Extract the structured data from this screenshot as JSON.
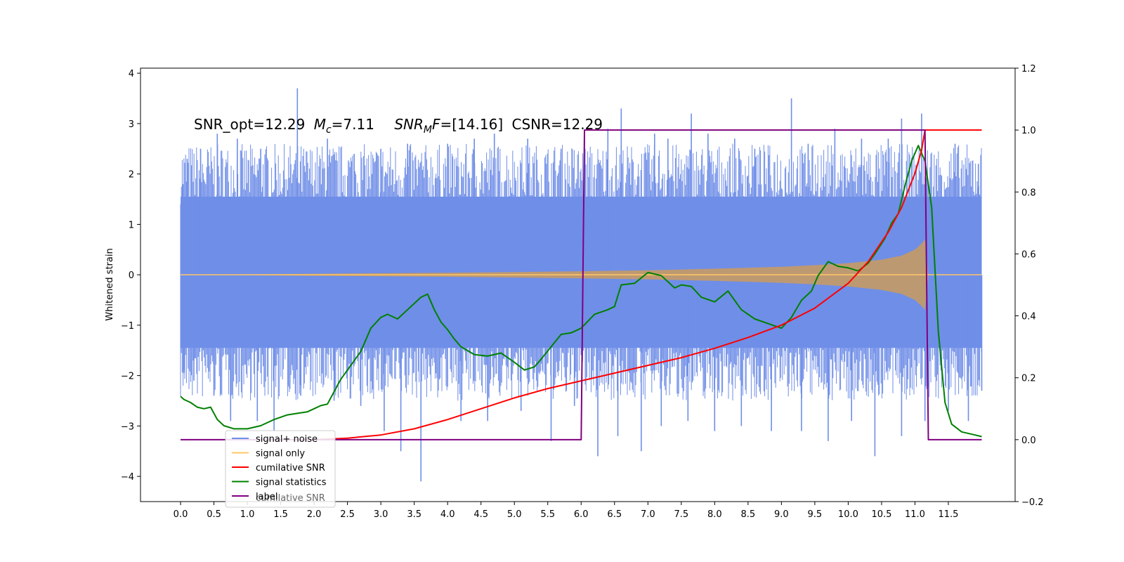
{
  "chart_data": {
    "type": "line",
    "title": "",
    "xlabel": "",
    "ylabel": "Whitened strain",
    "xlim": [
      -0.6,
      12.5
    ],
    "ylim": [
      -4.5,
      4.1
    ],
    "y2lim": [
      -0.2,
      1.2
    ],
    "x_ticks": [
      0.0,
      0.5,
      1.0,
      1.5,
      2.0,
      2.5,
      3.0,
      3.5,
      4.0,
      4.5,
      5.0,
      5.5,
      6.0,
      6.5,
      7.0,
      7.5,
      8.0,
      8.5,
      9.0,
      9.5,
      10.0,
      10.5,
      11.0,
      11.5
    ],
    "x_tick_labels": [
      "0.0",
      "0.5",
      "1.0",
      "1.5",
      "2.0",
      "2.5",
      "3.0",
      "3.5",
      "4.0",
      "4.5",
      "5.0",
      "5.5",
      "6.0",
      "6.5",
      "7.0",
      "7.5",
      "8.0",
      "8.5",
      "9.0",
      "9.5",
      "10.0",
      "10.5",
      "11.0",
      "11.5"
    ],
    "y_ticks": [
      -4,
      -3,
      -2,
      -1,
      0,
      1,
      2,
      3,
      4
    ],
    "y_tick_labels": [
      "−4",
      "−3",
      "−2",
      "−1",
      "0",
      "1",
      "2",
      "3",
      "4"
    ],
    "y2_ticks": [
      -0.2,
      0.0,
      0.2,
      0.4,
      0.6,
      0.8,
      1.0,
      1.2
    ],
    "y2_tick_labels": [
      "−0.2",
      "0.0",
      "0.2",
      "0.4",
      "0.6",
      "0.8",
      "1.0",
      "1.2"
    ],
    "annotation": {
      "snr_opt": "SNR_opt=12.29",
      "mc_symbol": "M",
      "mc_sub": "c",
      "mc_value": "=7.11",
      "snr_mf_symbol": "SNR",
      "snr_mf_sub": "M",
      "snr_mf_f": "F",
      "snr_mf_value": "=[14.16]",
      "csnr": "CSNR=12.29"
    },
    "legend": {
      "position": "lower-left",
      "items": [
        {
          "label": "signal+ noise",
          "color": "#6f8ee8"
        },
        {
          "label": "signal only",
          "color": "#ffc766"
        },
        {
          "label": "cumilative SNR",
          "color": "#ff0000"
        },
        {
          "label": "signal statistics",
          "color": "#008000"
        },
        {
          "label": "label",
          "color": "#800080"
        }
      ],
      "ghost_text": "cumilative SNR"
    },
    "series": [
      {
        "name": "signal+ noise",
        "axis": "left",
        "render": "noise-band",
        "x_start": 0.0,
        "x_end": 12.0,
        "band_upper": 1.55,
        "band_lower": -1.45,
        "spikes": [
          [
            0.03,
            1.8
          ],
          [
            0.1,
            2.3
          ],
          [
            0.3,
            2.5
          ],
          [
            0.55,
            2.8
          ],
          [
            0.85,
            2.7
          ],
          [
            1.2,
            2.5
          ],
          [
            1.75,
            3.7
          ],
          [
            2.2,
            2.7
          ],
          [
            2.6,
            2.4
          ],
          [
            3.0,
            2.5
          ],
          [
            3.4,
            2.6
          ],
          [
            4.0,
            2.6
          ],
          [
            4.4,
            2.7
          ],
          [
            4.7,
            2.8
          ],
          [
            5.2,
            2.7
          ],
          [
            5.7,
            2.5
          ],
          [
            6.05,
            2.7
          ],
          [
            6.4,
            2.9
          ],
          [
            6.6,
            3.3
          ],
          [
            7.1,
            2.8
          ],
          [
            7.3,
            2.7
          ],
          [
            7.65,
            3.2
          ],
          [
            7.9,
            2.8
          ],
          [
            8.3,
            2.7
          ],
          [
            8.6,
            2.5
          ],
          [
            9.15,
            3.5
          ],
          [
            9.4,
            2.6
          ],
          [
            9.8,
            2.9
          ],
          [
            10.2,
            2.7
          ],
          [
            10.6,
            2.7
          ],
          [
            10.8,
            3.1
          ],
          [
            11.1,
            3.2
          ],
          [
            11.6,
            2.6
          ],
          [
            11.95,
            2.2
          ],
          [
            0.05,
            -1.9
          ],
          [
            0.2,
            -2.1
          ],
          [
            0.5,
            -2.4
          ],
          [
            0.75,
            -2.9
          ],
          [
            1.15,
            -2.9
          ],
          [
            1.4,
            -3.1
          ],
          [
            1.8,
            -2.4
          ],
          [
            2.3,
            -2.5
          ],
          [
            2.7,
            -2.6
          ],
          [
            3.05,
            -3.1
          ],
          [
            3.3,
            -3.5
          ],
          [
            3.6,
            -4.1
          ],
          [
            4.2,
            -2.9
          ],
          [
            4.6,
            -2.9
          ],
          [
            5.1,
            -2.7
          ],
          [
            5.55,
            -3.3
          ],
          [
            5.9,
            -2.6
          ],
          [
            6.25,
            -3.6
          ],
          [
            6.55,
            -3.2
          ],
          [
            6.9,
            -3.5
          ],
          [
            7.2,
            -3.0
          ],
          [
            7.6,
            -2.9
          ],
          [
            8.0,
            -3.1
          ],
          [
            8.4,
            -3.0
          ],
          [
            8.85,
            -3.1
          ],
          [
            9.3,
            -3.1
          ],
          [
            9.7,
            -3.3
          ],
          [
            10.05,
            -2.9
          ],
          [
            10.4,
            -3.6
          ],
          [
            10.8,
            -3.2
          ],
          [
            11.15,
            -2.9
          ],
          [
            11.5,
            -2.7
          ],
          [
            11.8,
            -2.9
          ],
          [
            12.0,
            -2.3
          ]
        ]
      },
      {
        "name": "signal only",
        "axis": "left",
        "render": "chirp-envelope",
        "color": "#ffc766",
        "x": [
          0.0,
          2.0,
          4.0,
          6.0,
          7.0,
          8.0,
          9.0,
          9.5,
          10.0,
          10.5,
          10.8,
          11.0,
          11.1,
          11.15,
          11.2,
          12.0
        ],
        "amplitude": [
          0.0,
          0.02,
          0.04,
          0.07,
          0.09,
          0.12,
          0.16,
          0.19,
          0.23,
          0.3,
          0.38,
          0.5,
          0.62,
          0.7,
          0.0,
          0.0
        ]
      },
      {
        "name": "cumilative SNR",
        "axis": "right",
        "color": "#ff0000",
        "x": [
          2.0,
          2.5,
          3.0,
          3.5,
          4.0,
          4.5,
          5.0,
          5.5,
          6.0,
          6.5,
          7.0,
          7.5,
          8.0,
          8.5,
          9.0,
          9.5,
          10.0,
          10.3,
          10.6,
          10.8,
          11.0,
          11.1,
          11.15,
          12.0
        ],
        "y": [
          0.0,
          0.005,
          0.015,
          0.035,
          0.065,
          0.1,
          0.135,
          0.165,
          0.19,
          0.215,
          0.24,
          0.265,
          0.295,
          0.33,
          0.37,
          0.425,
          0.505,
          0.575,
          0.67,
          0.75,
          0.86,
          0.935,
          1.0,
          1.0
        ]
      },
      {
        "name": "signal statistics",
        "axis": "right",
        "color": "#008000",
        "x": [
          0.0,
          0.05,
          0.15,
          0.25,
          0.35,
          0.45,
          0.55,
          0.65,
          0.8,
          1.0,
          1.2,
          1.4,
          1.6,
          1.75,
          1.9,
          2.0,
          2.1,
          2.2,
          2.3,
          2.4,
          2.55,
          2.7,
          2.85,
          3.0,
          3.1,
          3.25,
          3.4,
          3.6,
          3.7,
          3.8,
          3.9,
          4.0,
          4.1,
          4.2,
          4.4,
          4.6,
          4.8,
          5.0,
          5.15,
          5.3,
          5.4,
          5.55,
          5.7,
          5.85,
          6.0,
          6.2,
          6.4,
          6.5,
          6.6,
          6.8,
          7.0,
          7.1,
          7.2,
          7.4,
          7.5,
          7.65,
          7.8,
          8.0,
          8.2,
          8.4,
          8.6,
          8.8,
          9.0,
          9.15,
          9.3,
          9.45,
          9.55,
          9.7,
          9.85,
          10.0,
          10.15,
          10.3,
          10.4,
          10.55,
          10.65,
          10.75,
          10.85,
          10.95,
          11.05,
          11.15,
          11.25,
          11.35,
          11.45,
          11.55,
          11.7,
          11.9,
          12.0
        ],
        "y": [
          0.14,
          0.13,
          0.12,
          0.105,
          0.1,
          0.105,
          0.065,
          0.045,
          0.035,
          0.035,
          0.045,
          0.065,
          0.08,
          0.085,
          0.09,
          0.1,
          0.11,
          0.115,
          0.155,
          0.195,
          0.24,
          0.285,
          0.36,
          0.395,
          0.405,
          0.39,
          0.42,
          0.46,
          0.47,
          0.42,
          0.38,
          0.355,
          0.325,
          0.3,
          0.275,
          0.27,
          0.28,
          0.25,
          0.225,
          0.235,
          0.26,
          0.3,
          0.34,
          0.345,
          0.36,
          0.405,
          0.42,
          0.43,
          0.5,
          0.505,
          0.54,
          0.535,
          0.53,
          0.49,
          0.5,
          0.495,
          0.46,
          0.445,
          0.48,
          0.42,
          0.39,
          0.375,
          0.36,
          0.395,
          0.45,
          0.48,
          0.53,
          0.575,
          0.56,
          0.555,
          0.545,
          0.57,
          0.6,
          0.65,
          0.7,
          0.73,
          0.82,
          0.9,
          0.95,
          0.9,
          0.75,
          0.35,
          0.12,
          0.05,
          0.025,
          0.015,
          0.01
        ]
      },
      {
        "name": "label",
        "axis": "right",
        "color": "#800080",
        "x": [
          0.0,
          6.0,
          6.05,
          11.15,
          11.2,
          12.0
        ],
        "y": [
          0.0,
          0.0,
          1.0,
          1.0,
          0.0,
          0.0
        ]
      }
    ]
  }
}
